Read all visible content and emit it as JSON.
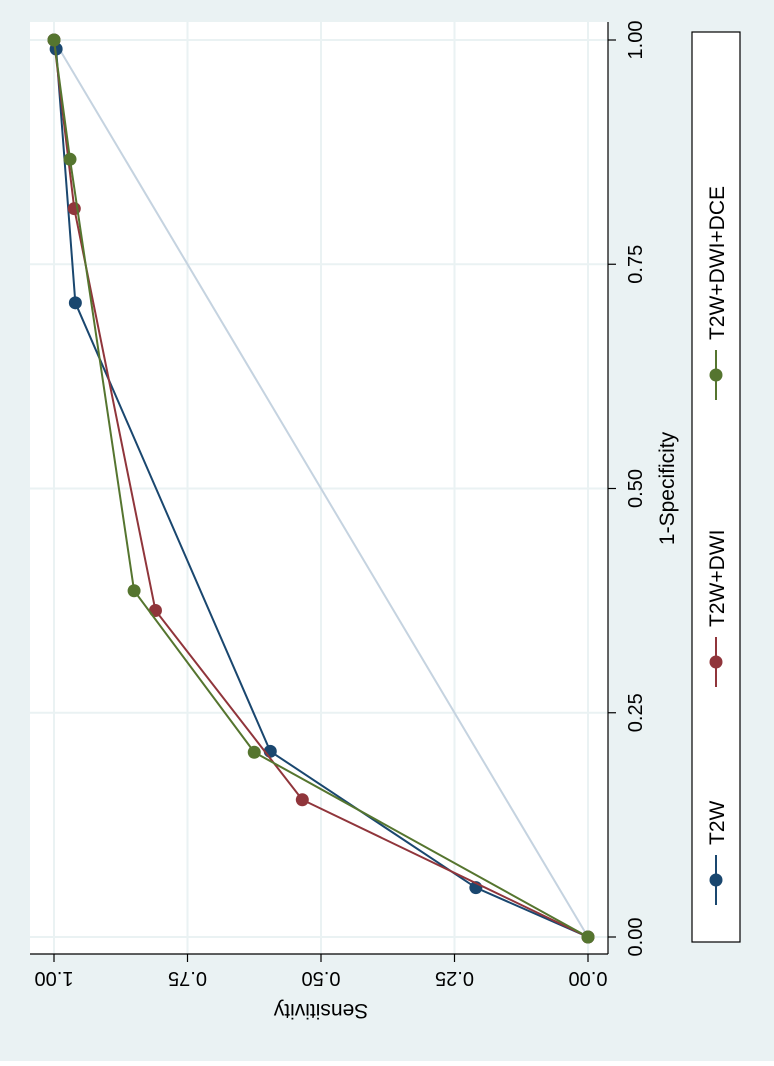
{
  "chart_data": {
    "type": "line",
    "orientation": "rotated 90 degrees clockwise",
    "xlabel": "1-Specificity",
    "ylabel": "Sensitivity",
    "xlim": [
      0,
      1
    ],
    "ylim": [
      0,
      1
    ],
    "x_ticks": [
      "0.00",
      "0.25",
      "0.50",
      "0.75",
      "1.00"
    ],
    "y_ticks": [
      "0.00",
      "0.25",
      "0.50",
      "0.75",
      "1.00"
    ],
    "grid": true,
    "reference_line": {
      "x": [
        0,
        1
      ],
      "y": [
        0,
        1
      ],
      "color": "#c5d3e0"
    },
    "legend_position": "right",
    "colors": {
      "outer_background": "#eaf2f3",
      "plot_background": "#ffffff",
      "grid": "#eaf2f3",
      "axis": "#000000"
    },
    "series": [
      {
        "name": "T2W",
        "color": "#1a476f",
        "x": [
          0,
          0.055,
          0.207,
          0.707,
          0.99,
          1.0
        ],
        "y": [
          0,
          0.21,
          0.595,
          0.96,
          0.996,
          1.0
        ]
      },
      {
        "name": "T2W+DWI",
        "color": "#90353b",
        "x": [
          0,
          0.153,
          0.364,
          0.812,
          1.0
        ],
        "y": [
          0,
          0.535,
          0.81,
          0.962,
          1.0
        ]
      },
      {
        "name": "T2W+DWI+DCE",
        "color": "#55752f",
        "x": [
          0,
          0.206,
          0.386,
          0.867,
          1.0
        ],
        "y": [
          0,
          0.625,
          0.85,
          0.97,
          1.0
        ]
      }
    ]
  }
}
